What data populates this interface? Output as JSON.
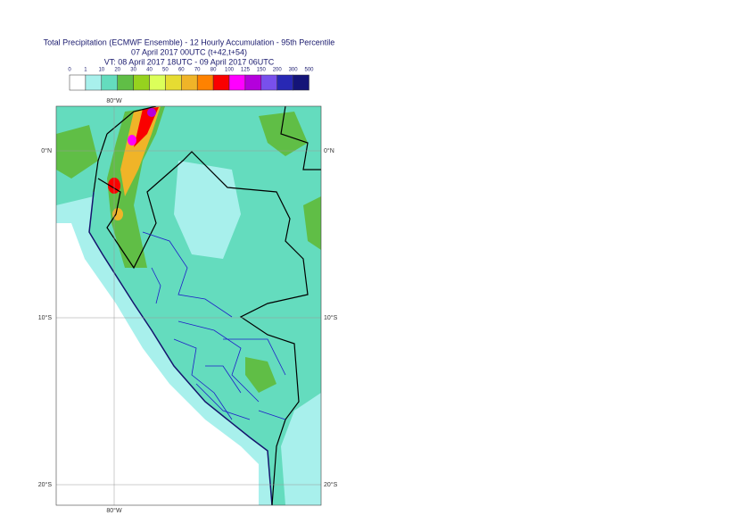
{
  "header": {
    "title": "Total Precipitation (ECMWF Ensemble) - 12 Hourly Accumulation - 95th Percentile",
    "subtitle": "07 April 2017 00UTC (t+42,t+54)",
    "valid_time": "VT: 08 April 2017 18UTC - 09 April 2017 06UTC"
  },
  "legend": {
    "labels": [
      "0",
      "1",
      "10",
      "20",
      "30",
      "40",
      "50",
      "60",
      "70",
      "80",
      "100",
      "125",
      "150",
      "200",
      "300",
      "500"
    ],
    "colors": [
      "#ffffff",
      "#a8f0ec",
      "#64dcbe",
      "#60be46",
      "#96d21e",
      "#dcff5a",
      "#e6dc32",
      "#f0b428",
      "#ff8200",
      "#fa0000",
      "#ff00ff",
      "#b400dc",
      "#7850ec",
      "#2828b4",
      "#141478"
    ]
  },
  "map": {
    "lon_top": "80°W",
    "lon_bottom": "80°W",
    "lat_left": [
      "0°N",
      "10°S",
      "20°S"
    ],
    "lat_right": [
      "0°N",
      "10°S",
      "20°S"
    ]
  }
}
